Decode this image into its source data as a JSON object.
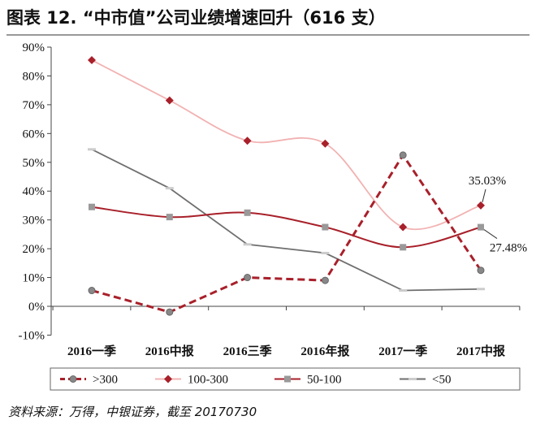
{
  "title": "图表 12. “中市值”公司业绩增速回升（616 支）",
  "source": "资料来源：万得，中银证券，截至 20170730",
  "chart_data": {
    "type": "line",
    "categories": [
      "2016一季",
      "2016中报",
      "2016三季",
      "2016年报",
      "2017一季",
      "2017中报"
    ],
    "ylim": [
      -10,
      90
    ],
    "yticks": [
      -10,
      0,
      10,
      20,
      30,
      40,
      50,
      60,
      70,
      80,
      90
    ],
    "ytick_labels": [
      "-10%",
      "0%",
      "10%",
      "20%",
      "30%",
      "40%",
      "50%",
      "60%",
      "70%",
      "80%",
      "90%"
    ],
    "grid": false,
    "legend_position": "bottom",
    "series": [
      {
        "name": ">300",
        "values": [
          5.5,
          -2.0,
          10.0,
          9.0,
          52.5,
          12.5
        ],
        "color": "#a8202a",
        "style": "dashed-thick",
        "marker": "circle",
        "smooth": false
      },
      {
        "name": "100-300",
        "values": [
          85.5,
          71.5,
          57.5,
          56.5,
          27.5,
          35.03
        ],
        "color": "#f2b2b2",
        "style": "solid",
        "marker": "diamond",
        "marker_color": "#a8202a",
        "smooth": true
      },
      {
        "name": "50-100",
        "values": [
          34.5,
          31.0,
          32.5,
          27.5,
          20.5,
          27.48
        ],
        "color": "#a8202a",
        "style": "solid",
        "marker": "square",
        "marker_color": "#999999",
        "smooth": true
      },
      {
        "name": "<50",
        "values": [
          54.5,
          41.0,
          21.5,
          18.5,
          5.5,
          6.0
        ],
        "color": "#6f6f6f",
        "style": "solid",
        "marker": "dash",
        "marker_color": "#cccccc",
        "smooth": false
      }
    ],
    "annotations": [
      {
        "text": "35.03%",
        "series": "100-300",
        "index": 5
      },
      {
        "text": "27.48%",
        "series": "50-100",
        "index": 5
      }
    ]
  }
}
